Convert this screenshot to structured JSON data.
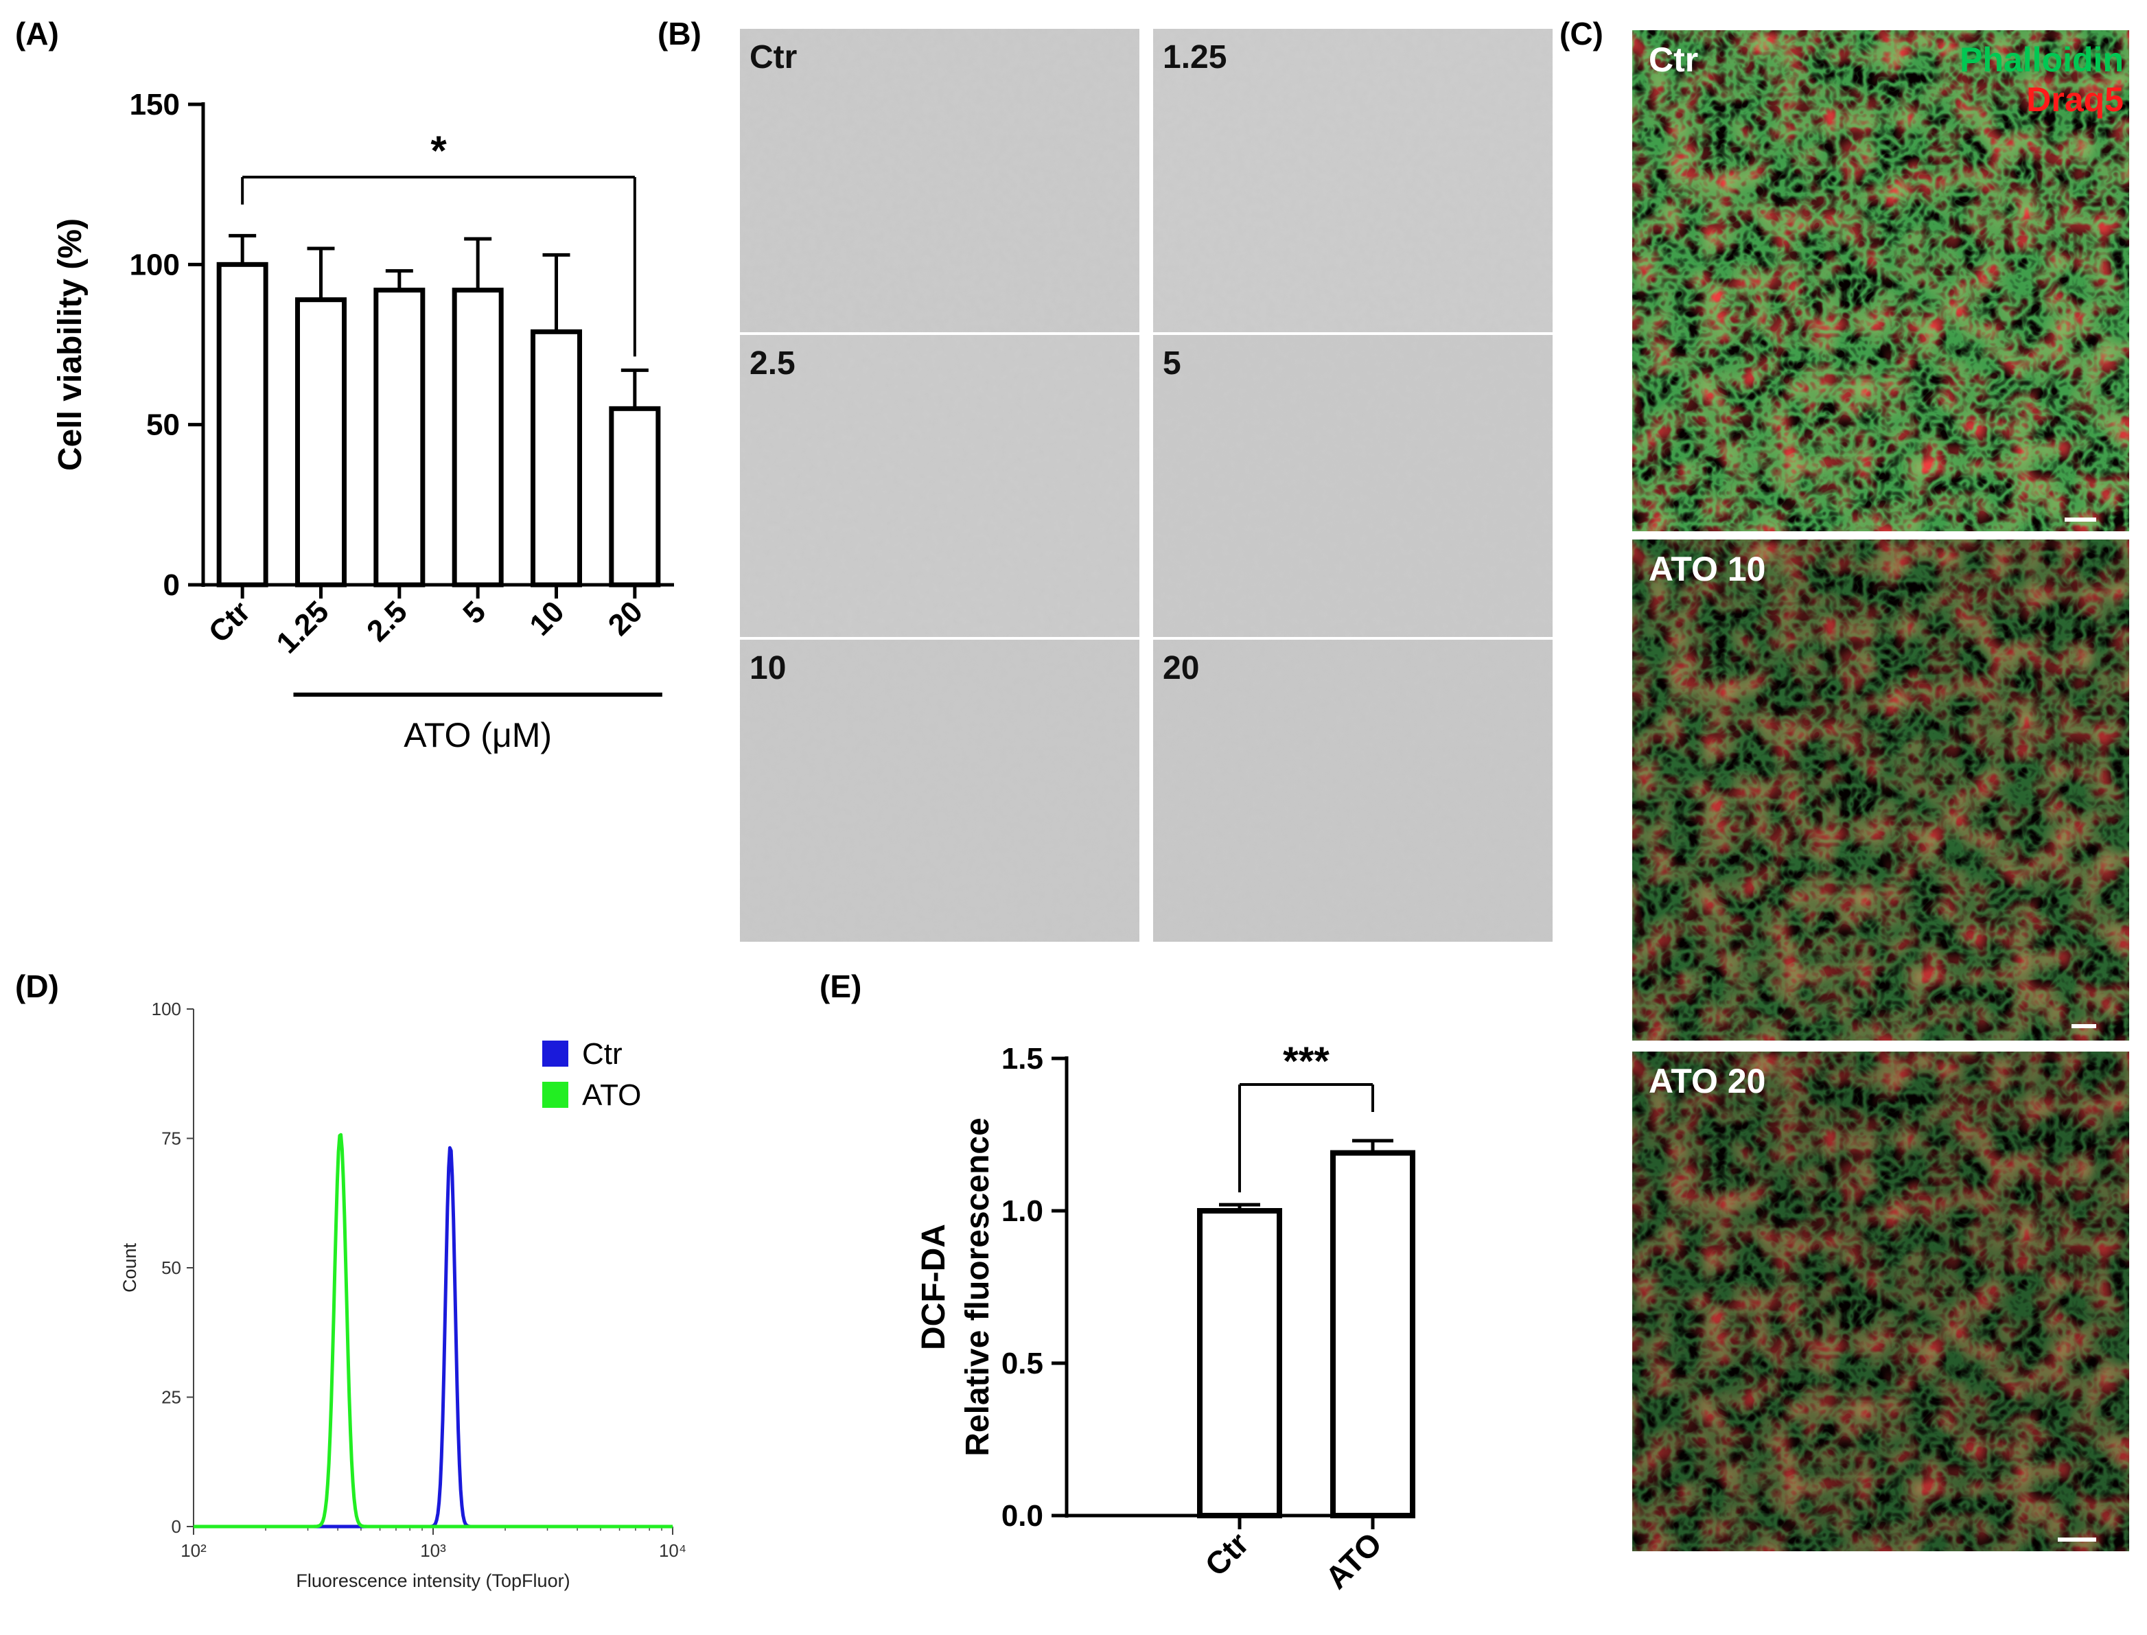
{
  "panels": {
    "A": {
      "label": "(A)",
      "chart_data": {
        "type": "bar",
        "categories": [
          "Ctr",
          "1.25",
          "2.5",
          "5",
          "10",
          "20"
        ],
        "values": [
          100,
          89,
          92,
          92,
          79,
          55
        ],
        "errors": [
          9,
          16,
          6,
          16,
          24,
          12
        ],
        "ylabel": "Cell viability (%)",
        "xlabel": "",
        "ylim": [
          0,
          150
        ],
        "yticks": [
          "0",
          "50",
          "100",
          "150"
        ],
        "group_label": "ATO (μM)",
        "significance": {
          "from": "Ctr",
          "to": "20",
          "text": "*"
        }
      }
    },
    "B": {
      "label": "(B)",
      "images": [
        {
          "label": "Ctr"
        },
        {
          "label": "1.25"
        },
        {
          "label": "2.5"
        },
        {
          "label": "5"
        },
        {
          "label": "10"
        },
        {
          "label": "20"
        }
      ]
    },
    "C": {
      "label": "(C)",
      "legend": [
        {
          "text": "Phalloidin",
          "color": "#00c853"
        },
        {
          "text": "Draq5",
          "color": "#ff1a1a"
        }
      ],
      "images": [
        {
          "label": "Ctr"
        },
        {
          "label": "ATO 10"
        },
        {
          "label": "ATO 20"
        }
      ]
    },
    "D": {
      "label": "(D)",
      "chart_data": {
        "type": "line",
        "xscale": "log",
        "xlim": [
          100,
          10000
        ],
        "xticks": [
          "10²",
          "10³",
          "10⁴"
        ],
        "ylim": [
          0,
          100
        ],
        "yticks": [
          "0",
          "25",
          "50",
          "75",
          "100"
        ],
        "xlabel": "Fluorescence intensity (TopFluor)",
        "ylabel": "Count",
        "legend_position": "top-right",
        "series": [
          {
            "name": "Ctr",
            "color": "#1a1adb",
            "peak_x": 1180,
            "peak_y": 73.5,
            "spread": 0.02
          },
          {
            "name": "ATO",
            "color": "#22ee22",
            "peak_x": 410,
            "peak_y": 76,
            "spread": 0.025
          }
        ]
      }
    },
    "E": {
      "label": "(E)",
      "chart_data": {
        "type": "bar",
        "categories": [
          "Ctr",
          "ATO"
        ],
        "values": [
          1.0,
          1.19
        ],
        "errors": [
          0.02,
          0.04
        ],
        "ylabel_lines": [
          "DCF-DA",
          "Relative fluorescence"
        ],
        "xlabel": "",
        "ylim": [
          0,
          1.5
        ],
        "yticks": [
          "0.0",
          "0.5",
          "1.0",
          "1.5"
        ],
        "significance": {
          "from": "Ctr",
          "to": "ATO",
          "text": "***"
        }
      }
    }
  }
}
